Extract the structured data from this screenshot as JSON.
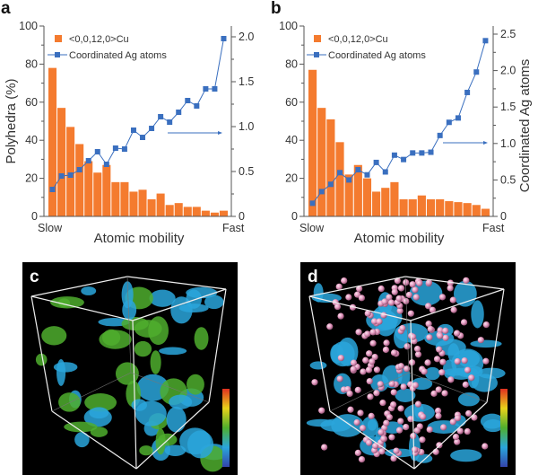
{
  "colors": {
    "bar": "#f47b2f",
    "line": "#3a6fbf",
    "axis": "#555555",
    "surface": "#2aa6dc",
    "green": "#4fae2e",
    "atoms": "#e49ac0"
  },
  "chart_data": [
    {
      "type": "bar+line",
      "panel": "a",
      "xlabel": "Atomic mobility",
      "x_start_label": "Slow",
      "x_end_label": "Fast",
      "ylabel": "Polyhedra (%)",
      "y2label": "",
      "ylim": [
        0,
        100
      ],
      "yticks": [
        "0",
        "20",
        "40",
        "60",
        "80",
        "100"
      ],
      "y2lim": [
        0,
        2.0
      ],
      "y2ticks": [
        "0",
        "0.5",
        "1.0",
        "1.5",
        "2.0"
      ],
      "legend": [
        "<0,0,12,0>Cu",
        "Coordinated Ag atoms"
      ],
      "legend_position": "top-left",
      "series": [
        {
          "name": "<0,0,12,0>Cu",
          "kind": "bar",
          "axis": "left",
          "values": [
            78,
            57,
            47,
            38,
            29,
            23,
            27,
            18,
            18,
            13,
            14,
            9,
            12,
            6,
            7,
            5,
            5,
            3,
            2,
            3
          ]
        },
        {
          "name": "Coordinated Ag atoms",
          "kind": "line",
          "axis": "right",
          "values": [
            0.3,
            0.45,
            0.46,
            0.52,
            0.62,
            0.72,
            0.58,
            0.76,
            0.75,
            0.96,
            0.88,
            0.98,
            1.11,
            1.05,
            1.16,
            1.29,
            1.23,
            1.42,
            1.42,
            1.98
          ]
        }
      ]
    },
    {
      "type": "bar+line",
      "panel": "b",
      "xlabel": "Atomic mobility",
      "x_start_label": "Slow",
      "x_end_label": "Fast",
      "ylabel": "",
      "y2label": "Coordinated Ag atoms",
      "ylim": [
        0,
        100
      ],
      "yticks": [
        "0",
        "20",
        "40",
        "60",
        "80",
        "100"
      ],
      "y2lim": [
        0,
        2.5
      ],
      "y2ticks": [
        "0",
        "0.5",
        "1.0",
        "1.5",
        "2.0",
        "2.5"
      ],
      "legend": [
        "<0,0,12,0>Cu",
        "Coordinated Ag atoms"
      ],
      "legend_position": "top-left",
      "series": [
        {
          "name": "<0,0,12,0>Cu",
          "kind": "bar",
          "axis": "left",
          "values": [
            77,
            57,
            51,
            39,
            22,
            27,
            20,
            13,
            15,
            18,
            9,
            9,
            11,
            9,
            9,
            8,
            7.5,
            7,
            6,
            4
          ]
        },
        {
          "name": "Coordinated Ag atoms",
          "kind": "line",
          "axis": "right",
          "values": [
            0.18,
            0.34,
            0.44,
            0.6,
            0.5,
            0.64,
            0.57,
            0.74,
            0.61,
            0.84,
            0.78,
            0.87,
            0.87,
            0.88,
            1.11,
            1.29,
            1.35,
            1.7,
            1.98,
            2.41
          ]
        }
      ]
    }
  ],
  "panels": {
    "a": "a",
    "b": "b",
    "c": "c",
    "d": "d"
  }
}
